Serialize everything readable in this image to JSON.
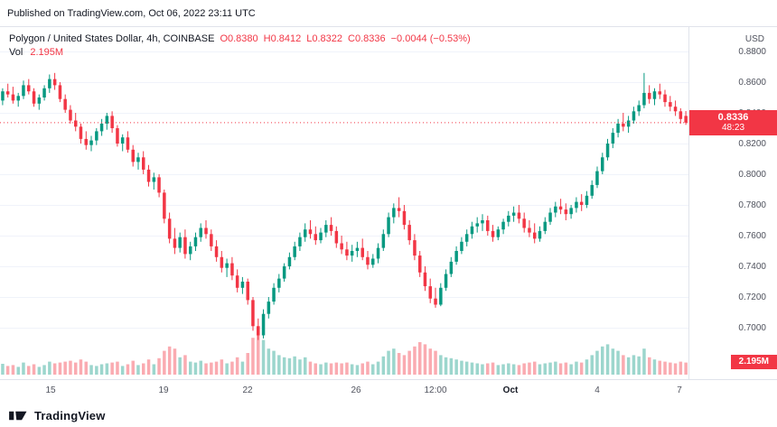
{
  "published_bar": {
    "text": "Published on TradingView.com, Oct 06, 2022 23:11 UTC"
  },
  "legend": {
    "title": "Polygon / United States Dollar, 4h, COINBASE",
    "ohlc_values": [
      "O0.8380",
      "H0.8412",
      "L0.8322",
      "C0.8336",
      "−0.0044 (−0.53%)"
    ],
    "ohlc_names": [
      "ohlc-open",
      "ohlc-high",
      "ohlc-low",
      "ohlc-close",
      "ohlc-change"
    ],
    "volume_label": "Vol",
    "volume_value": "2.195M"
  },
  "price_axis": {
    "currency": "USD",
    "ticks": [
      "0.8800",
      "0.8600",
      "0.8400",
      "0.8200",
      "0.8000",
      "0.7800",
      "0.7600",
      "0.7400",
      "0.7200",
      "0.7000"
    ],
    "price_badge": {
      "price": "0.8336",
      "countdown": "48:23"
    },
    "volume_badge": {
      "value": "2.195M"
    }
  },
  "time_axis": {
    "labels": [
      {
        "text": "15",
        "pos": 0.073
      },
      {
        "text": "19",
        "pos": 0.238
      },
      {
        "text": "22",
        "pos": 0.36
      },
      {
        "text": "26",
        "pos": 0.517
      },
      {
        "text": "12:00",
        "pos": 0.633
      },
      {
        "text": "Oct",
        "pos": 0.742,
        "bold": true
      },
      {
        "text": "4",
        "pos": 0.868
      },
      {
        "text": "7",
        "pos": 0.987
      }
    ]
  },
  "footer": {
    "brand": "TradingView"
  },
  "colors": {
    "up": "#089981",
    "down": "#f23645",
    "vol_up": "rgba(8,153,129,0.40)",
    "vol_down": "rgba(242,54,69,0.42)",
    "grid": "#f0f3fa",
    "axis_text": "#50535e",
    "badge": "#f23645"
  },
  "chart_data": {
    "type": "candlestick",
    "title": "Polygon / United States Dollar",
    "interval": "4h",
    "exchange": "COINBASE",
    "currency": "USD",
    "last": {
      "open": 0.838,
      "high": 0.8412,
      "low": 0.8322,
      "close": 0.8336,
      "change": -0.0044,
      "change_pct": -0.53,
      "countdown": "48:23"
    },
    "volume_display": "2.195M",
    "y_axis": {
      "min": 0.69,
      "max": 0.882,
      "gridlines": [
        0.88,
        0.86,
        0.84,
        0.82,
        0.8,
        0.78,
        0.76,
        0.74,
        0.72,
        0.7
      ]
    },
    "x_range": [
      "Sep 14",
      "Oct 7"
    ],
    "grid": "horizontal",
    "legend_position": "top-left",
    "candles_format": [
      "open",
      "high",
      "low",
      "close",
      "relative_volume"
    ],
    "candles": [
      [
        0.848,
        0.856,
        0.845,
        0.854,
        0.25
      ],
      [
        0.854,
        0.859,
        0.85,
        0.852,
        0.2
      ],
      [
        0.852,
        0.857,
        0.846,
        0.848,
        0.22
      ],
      [
        0.848,
        0.853,
        0.844,
        0.851,
        0.18
      ],
      [
        0.851,
        0.861,
        0.849,
        0.858,
        0.28
      ],
      [
        0.858,
        0.862,
        0.852,
        0.854,
        0.2
      ],
      [
        0.854,
        0.856,
        0.844,
        0.846,
        0.24
      ],
      [
        0.846,
        0.852,
        0.842,
        0.85,
        0.18
      ],
      [
        0.85,
        0.858,
        0.848,
        0.856,
        0.22
      ],
      [
        0.856,
        0.865,
        0.853,
        0.862,
        0.3
      ],
      [
        0.862,
        0.866,
        0.855,
        0.858,
        0.26
      ],
      [
        0.858,
        0.86,
        0.847,
        0.849,
        0.28
      ],
      [
        0.849,
        0.852,
        0.84,
        0.842,
        0.3
      ],
      [
        0.842,
        0.845,
        0.833,
        0.835,
        0.32
      ],
      [
        0.835,
        0.84,
        0.828,
        0.831,
        0.28
      ],
      [
        0.831,
        0.833,
        0.82,
        0.823,
        0.35
      ],
      [
        0.823,
        0.828,
        0.816,
        0.819,
        0.3
      ],
      [
        0.819,
        0.825,
        0.815,
        0.822,
        0.22
      ],
      [
        0.822,
        0.83,
        0.819,
        0.828,
        0.2
      ],
      [
        0.828,
        0.836,
        0.825,
        0.833,
        0.24
      ],
      [
        0.833,
        0.84,
        0.829,
        0.838,
        0.26
      ],
      [
        0.838,
        0.841,
        0.827,
        0.83,
        0.28
      ],
      [
        0.83,
        0.832,
        0.818,
        0.82,
        0.3
      ],
      [
        0.82,
        0.826,
        0.815,
        0.824,
        0.2
      ],
      [
        0.824,
        0.828,
        0.814,
        0.816,
        0.24
      ],
      [
        0.816,
        0.819,
        0.805,
        0.808,
        0.32
      ],
      [
        0.808,
        0.814,
        0.803,
        0.811,
        0.22
      ],
      [
        0.811,
        0.815,
        0.8,
        0.803,
        0.26
      ],
      [
        0.803,
        0.806,
        0.792,
        0.795,
        0.35
      ],
      [
        0.795,
        0.801,
        0.79,
        0.798,
        0.24
      ],
      [
        0.798,
        0.8,
        0.785,
        0.788,
        0.38
      ],
      [
        0.788,
        0.79,
        0.768,
        0.771,
        0.55
      ],
      [
        0.771,
        0.775,
        0.755,
        0.758,
        0.65
      ],
      [
        0.758,
        0.765,
        0.748,
        0.752,
        0.6
      ],
      [
        0.752,
        0.762,
        0.749,
        0.759,
        0.4
      ],
      [
        0.759,
        0.764,
        0.745,
        0.748,
        0.45
      ],
      [
        0.748,
        0.756,
        0.744,
        0.753,
        0.3
      ],
      [
        0.753,
        0.762,
        0.75,
        0.759,
        0.28
      ],
      [
        0.759,
        0.768,
        0.756,
        0.765,
        0.32
      ],
      [
        0.765,
        0.77,
        0.758,
        0.761,
        0.26
      ],
      [
        0.761,
        0.764,
        0.75,
        0.753,
        0.28
      ],
      [
        0.753,
        0.757,
        0.743,
        0.746,
        0.3
      ],
      [
        0.746,
        0.75,
        0.736,
        0.739,
        0.35
      ],
      [
        0.739,
        0.745,
        0.733,
        0.742,
        0.26
      ],
      [
        0.742,
        0.746,
        0.731,
        0.734,
        0.3
      ],
      [
        0.734,
        0.738,
        0.723,
        0.726,
        0.4
      ],
      [
        0.726,
        0.733,
        0.722,
        0.73,
        0.3
      ],
      [
        0.73,
        0.732,
        0.715,
        0.718,
        0.5
      ],
      [
        0.718,
        0.72,
        0.698,
        0.701,
        0.85
      ],
      [
        0.701,
        0.706,
        0.692,
        0.695,
        1.0
      ],
      [
        0.695,
        0.712,
        0.693,
        0.709,
        0.8
      ],
      [
        0.709,
        0.72,
        0.706,
        0.717,
        0.6
      ],
      [
        0.717,
        0.729,
        0.715,
        0.726,
        0.55
      ],
      [
        0.726,
        0.735,
        0.723,
        0.732,
        0.45
      ],
      [
        0.732,
        0.742,
        0.73,
        0.74,
        0.4
      ],
      [
        0.74,
        0.749,
        0.738,
        0.746,
        0.38
      ],
      [
        0.746,
        0.756,
        0.744,
        0.753,
        0.42
      ],
      [
        0.753,
        0.762,
        0.75,
        0.759,
        0.35
      ],
      [
        0.759,
        0.768,
        0.756,
        0.764,
        0.4
      ],
      [
        0.764,
        0.77,
        0.758,
        0.761,
        0.3
      ],
      [
        0.761,
        0.766,
        0.754,
        0.757,
        0.26
      ],
      [
        0.757,
        0.765,
        0.755,
        0.762,
        0.24
      ],
      [
        0.762,
        0.77,
        0.759,
        0.767,
        0.28
      ],
      [
        0.767,
        0.772,
        0.76,
        0.763,
        0.26
      ],
      [
        0.763,
        0.766,
        0.752,
        0.755,
        0.28
      ],
      [
        0.755,
        0.76,
        0.748,
        0.751,
        0.26
      ],
      [
        0.751,
        0.756,
        0.744,
        0.747,
        0.28
      ],
      [
        0.747,
        0.754,
        0.743,
        0.75,
        0.24
      ],
      [
        0.75,
        0.756,
        0.746,
        0.752,
        0.22
      ],
      [
        0.752,
        0.758,
        0.744,
        0.746,
        0.26
      ],
      [
        0.746,
        0.75,
        0.738,
        0.741,
        0.3
      ],
      [
        0.741,
        0.748,
        0.739,
        0.745,
        0.24
      ],
      [
        0.745,
        0.755,
        0.742,
        0.752,
        0.3
      ],
      [
        0.752,
        0.764,
        0.75,
        0.761,
        0.42
      ],
      [
        0.761,
        0.775,
        0.759,
        0.772,
        0.55
      ],
      [
        0.772,
        0.781,
        0.768,
        0.778,
        0.6
      ],
      [
        0.778,
        0.785,
        0.772,
        0.776,
        0.5
      ],
      [
        0.776,
        0.78,
        0.764,
        0.767,
        0.45
      ],
      [
        0.767,
        0.77,
        0.754,
        0.757,
        0.55
      ],
      [
        0.757,
        0.761,
        0.744,
        0.747,
        0.65
      ],
      [
        0.747,
        0.75,
        0.733,
        0.736,
        0.75
      ],
      [
        0.736,
        0.74,
        0.724,
        0.727,
        0.7
      ],
      [
        0.727,
        0.732,
        0.716,
        0.719,
        0.6
      ],
      [
        0.719,
        0.726,
        0.713,
        0.715,
        0.55
      ],
      [
        0.715,
        0.729,
        0.714,
        0.726,
        0.45
      ],
      [
        0.726,
        0.738,
        0.724,
        0.735,
        0.4
      ],
      [
        0.735,
        0.746,
        0.733,
        0.743,
        0.38
      ],
      [
        0.743,
        0.753,
        0.741,
        0.75,
        0.35
      ],
      [
        0.75,
        0.759,
        0.748,
        0.756,
        0.32
      ],
      [
        0.756,
        0.764,
        0.753,
        0.761,
        0.3
      ],
      [
        0.761,
        0.769,
        0.758,
        0.766,
        0.28
      ],
      [
        0.766,
        0.772,
        0.762,
        0.768,
        0.26
      ],
      [
        0.768,
        0.774,
        0.763,
        0.77,
        0.24
      ],
      [
        0.77,
        0.773,
        0.76,
        0.763,
        0.26
      ],
      [
        0.763,
        0.767,
        0.756,
        0.759,
        0.28
      ],
      [
        0.759,
        0.766,
        0.757,
        0.764,
        0.22
      ],
      [
        0.764,
        0.771,
        0.761,
        0.769,
        0.24
      ],
      [
        0.769,
        0.776,
        0.766,
        0.773,
        0.26
      ],
      [
        0.773,
        0.779,
        0.769,
        0.775,
        0.24
      ],
      [
        0.775,
        0.78,
        0.768,
        0.771,
        0.22
      ],
      [
        0.771,
        0.775,
        0.762,
        0.765,
        0.26
      ],
      [
        0.765,
        0.77,
        0.759,
        0.762,
        0.28
      ],
      [
        0.762,
        0.768,
        0.755,
        0.758,
        0.3
      ],
      [
        0.758,
        0.766,
        0.756,
        0.763,
        0.24
      ],
      [
        0.763,
        0.772,
        0.761,
        0.769,
        0.26
      ],
      [
        0.769,
        0.778,
        0.767,
        0.775,
        0.28
      ],
      [
        0.775,
        0.782,
        0.772,
        0.779,
        0.3
      ],
      [
        0.779,
        0.784,
        0.774,
        0.777,
        0.26
      ],
      [
        0.777,
        0.781,
        0.77,
        0.774,
        0.28
      ],
      [
        0.774,
        0.78,
        0.771,
        0.778,
        0.24
      ],
      [
        0.778,
        0.785,
        0.775,
        0.782,
        0.3
      ],
      [
        0.782,
        0.787,
        0.776,
        0.78,
        0.28
      ],
      [
        0.78,
        0.789,
        0.778,
        0.786,
        0.35
      ],
      [
        0.786,
        0.796,
        0.784,
        0.793,
        0.45
      ],
      [
        0.793,
        0.805,
        0.791,
        0.802,
        0.55
      ],
      [
        0.802,
        0.814,
        0.8,
        0.811,
        0.65
      ],
      [
        0.811,
        0.823,
        0.809,
        0.82,
        0.7
      ],
      [
        0.82,
        0.83,
        0.817,
        0.827,
        0.6
      ],
      [
        0.827,
        0.836,
        0.824,
        0.833,
        0.55
      ],
      [
        0.833,
        0.84,
        0.828,
        0.831,
        0.45
      ],
      [
        0.831,
        0.838,
        0.827,
        0.835,
        0.4
      ],
      [
        0.835,
        0.844,
        0.833,
        0.841,
        0.45
      ],
      [
        0.841,
        0.848,
        0.838,
        0.845,
        0.42
      ],
      [
        0.845,
        0.866,
        0.843,
        0.853,
        0.6
      ],
      [
        0.853,
        0.858,
        0.846,
        0.849,
        0.4
      ],
      [
        0.849,
        0.856,
        0.845,
        0.854,
        0.35
      ],
      [
        0.854,
        0.859,
        0.849,
        0.852,
        0.32
      ],
      [
        0.852,
        0.855,
        0.844,
        0.847,
        0.3
      ],
      [
        0.847,
        0.851,
        0.841,
        0.844,
        0.28
      ],
      [
        0.844,
        0.848,
        0.838,
        0.841,
        0.26
      ],
      [
        0.841,
        0.843,
        0.833,
        0.836,
        0.3
      ],
      [
        0.838,
        0.8412,
        0.8322,
        0.8336,
        0.28
      ]
    ]
  }
}
